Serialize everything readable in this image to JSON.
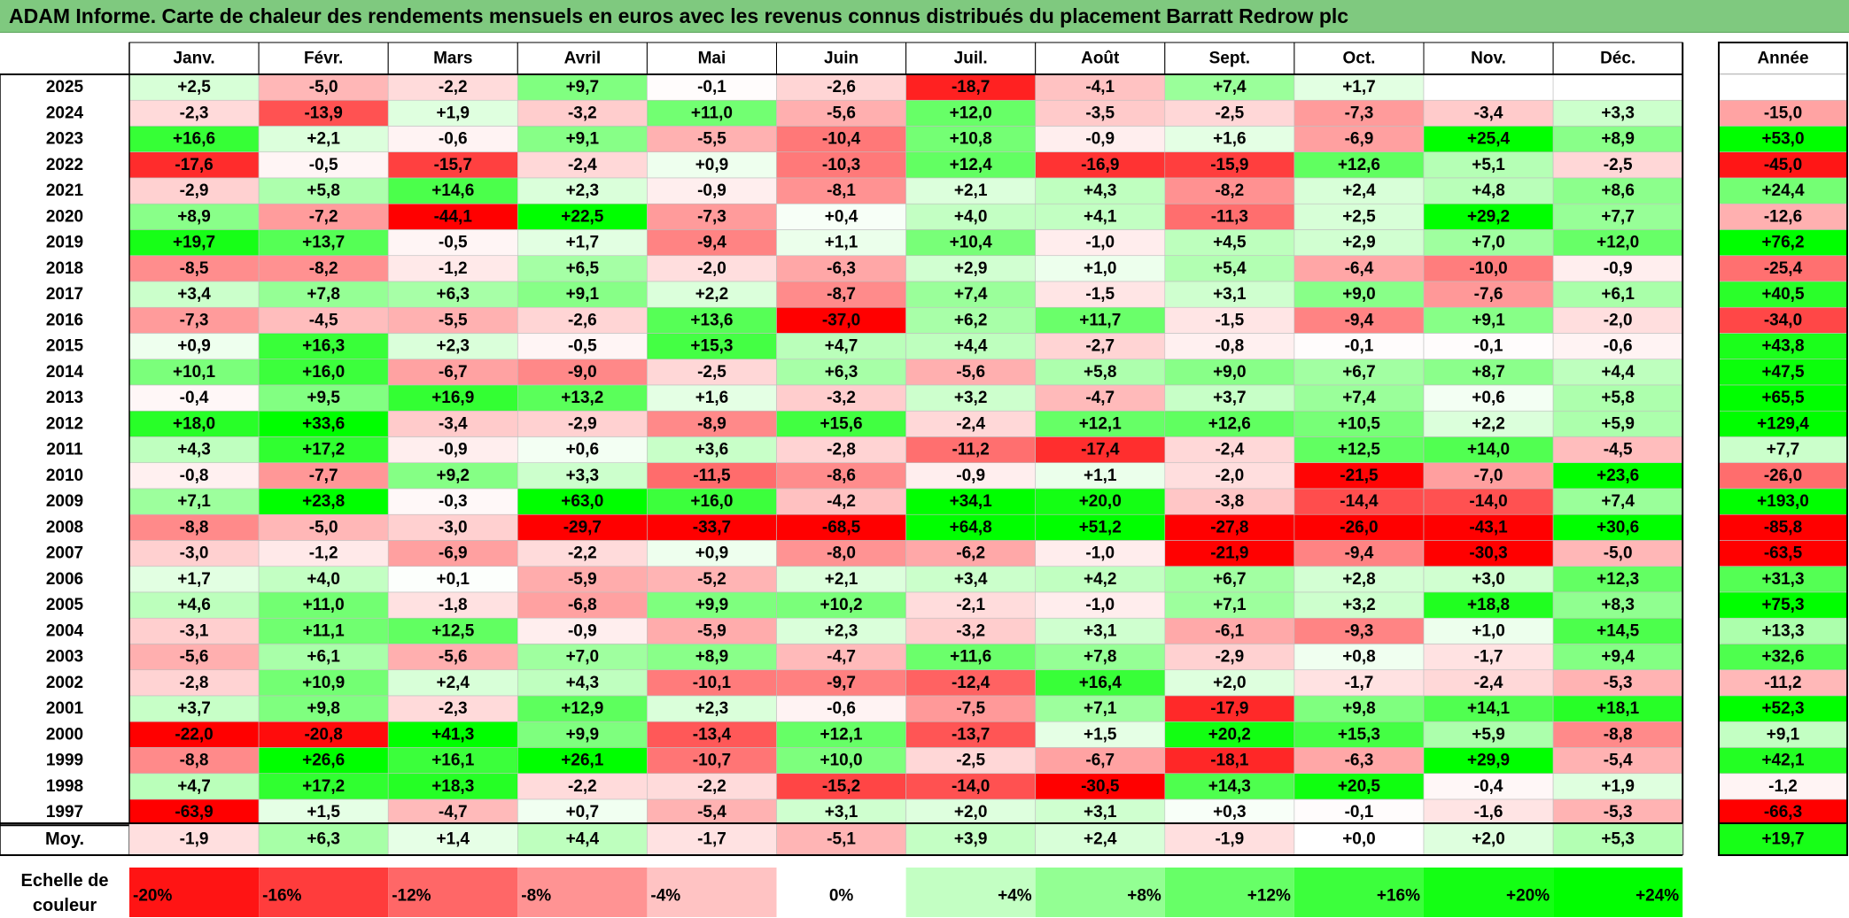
{
  "title": "ADAM Informe. Carte de chaleur des rendements mensuels en euros avec les revenus connus distribués du placement Barratt Redrow plc",
  "colors": {
    "title_background": "#7fc97f",
    "negative_max": "#ff0000",
    "neutral": "#ffffff",
    "positive_max": "#00ff00"
  },
  "chart_data": {
    "type": "heatmap",
    "month_labels": [
      "Janv.",
      "Févr.",
      "Mars",
      "Avril",
      "Mai",
      "Juin",
      "Juil.",
      "Août",
      "Sept.",
      "Oct.",
      "Nov.",
      "Déc."
    ],
    "year_header": "Année",
    "rows": [
      {
        "year": "2025",
        "months": [
          "+2,5",
          "-5,0",
          "-2,2",
          "+9,7",
          "-0,1",
          "-2,6",
          "-18,7",
          "-4,1",
          "+7,4",
          "+1,7",
          "",
          ""
        ],
        "annual": ""
      },
      {
        "year": "2024",
        "months": [
          "-2,3",
          "-13,9",
          "+1,9",
          "-3,2",
          "+11,0",
          "-5,6",
          "+12,0",
          "-3,5",
          "-2,5",
          "-7,3",
          "-3,4",
          "+3,3"
        ],
        "annual": "-15,0"
      },
      {
        "year": "2023",
        "months": [
          "+16,6",
          "+2,1",
          "-0,6",
          "+9,1",
          "-5,5",
          "-10,4",
          "+10,8",
          "-0,9",
          "+1,6",
          "-6,9",
          "+25,4",
          "+8,9"
        ],
        "annual": "+53,0"
      },
      {
        "year": "2022",
        "months": [
          "-17,6",
          "-0,5",
          "-15,7",
          "-2,4",
          "+0,9",
          "-10,3",
          "+12,4",
          "-16,9",
          "-15,9",
          "+12,6",
          "+5,1",
          "-2,5"
        ],
        "annual": "-45,0"
      },
      {
        "year": "2021",
        "months": [
          "-2,9",
          "+5,8",
          "+14,6",
          "+2,3",
          "-0,9",
          "-8,1",
          "+2,1",
          "+4,3",
          "-8,2",
          "+2,4",
          "+4,8",
          "+8,6"
        ],
        "annual": "+24,4"
      },
      {
        "year": "2020",
        "months": [
          "+8,9",
          "-7,2",
          "-44,1",
          "+22,5",
          "-7,3",
          "+0,4",
          "+4,0",
          "+4,1",
          "-11,3",
          "+2,5",
          "+29,2",
          "+7,7"
        ],
        "annual": "-12,6"
      },
      {
        "year": "2019",
        "months": [
          "+19,7",
          "+13,7",
          "-0,5",
          "+1,7",
          "-9,4",
          "+1,1",
          "+10,4",
          "-1,0",
          "+4,5",
          "+2,9",
          "+7,0",
          "+12,0"
        ],
        "annual": "+76,2"
      },
      {
        "year": "2018",
        "months": [
          "-8,5",
          "-8,2",
          "-1,2",
          "+6,5",
          "-2,0",
          "-6,3",
          "+2,9",
          "+1,0",
          "+5,4",
          "-6,4",
          "-10,0",
          "-0,9"
        ],
        "annual": "-25,4"
      },
      {
        "year": "2017",
        "months": [
          "+3,4",
          "+7,8",
          "+6,3",
          "+9,1",
          "+2,2",
          "-8,7",
          "+7,4",
          "-1,5",
          "+3,1",
          "+9,0",
          "-7,6",
          "+6,1"
        ],
        "annual": "+40,5"
      },
      {
        "year": "2016",
        "months": [
          "-7,3",
          "-4,5",
          "-5,5",
          "-2,6",
          "+13,6",
          "-37,0",
          "+6,2",
          "+11,7",
          "-1,5",
          "-9,4",
          "+9,1",
          "-2,0"
        ],
        "annual": "-34,0"
      },
      {
        "year": "2015",
        "months": [
          "+0,9",
          "+16,3",
          "+2,3",
          "-0,5",
          "+15,3",
          "+4,7",
          "+4,4",
          "-2,7",
          "-0,8",
          "-0,1",
          "-0,1",
          "-0,6"
        ],
        "annual": "+43,8"
      },
      {
        "year": "2014",
        "months": [
          "+10,1",
          "+16,0",
          "-6,7",
          "-9,0",
          "-2,5",
          "+6,3",
          "-5,6",
          "+5,8",
          "+9,0",
          "+6,7",
          "+8,7",
          "+4,4"
        ],
        "annual": "+47,5"
      },
      {
        "year": "2013",
        "months": [
          "-0,4",
          "+9,5",
          "+16,9",
          "+13,2",
          "+1,6",
          "-3,2",
          "+3,2",
          "-4,7",
          "+3,7",
          "+7,4",
          "+0,6",
          "+5,8"
        ],
        "annual": "+65,5"
      },
      {
        "year": "2012",
        "months": [
          "+18,0",
          "+33,6",
          "-3,4",
          "-2,9",
          "-8,9",
          "+15,6",
          "-2,4",
          "+12,1",
          "+12,6",
          "+10,5",
          "+2,2",
          "+5,9"
        ],
        "annual": "+129,4"
      },
      {
        "year": "2011",
        "months": [
          "+4,3",
          "+17,2",
          "-0,9",
          "+0,6",
          "+3,6",
          "-2,8",
          "-11,2",
          "-17,4",
          "-2,4",
          "+12,5",
          "+14,0",
          "-4,5"
        ],
        "annual": "+7,7"
      },
      {
        "year": "2010",
        "months": [
          "-0,8",
          "-7,7",
          "+9,2",
          "+3,3",
          "-11,5",
          "-8,6",
          "-0,9",
          "+1,1",
          "-2,0",
          "-21,5",
          "-7,0",
          "+23,6"
        ],
        "annual": "-26,0"
      },
      {
        "year": "2009",
        "months": [
          "+7,1",
          "+23,8",
          "-0,3",
          "+63,0",
          "+16,0",
          "-4,2",
          "+34,1",
          "+20,0",
          "-3,8",
          "-14,4",
          "-14,0",
          "+7,4"
        ],
        "annual": "+193,0"
      },
      {
        "year": "2008",
        "months": [
          "-8,8",
          "-5,0",
          "-3,0",
          "-29,7",
          "-33,7",
          "-68,5",
          "+64,8",
          "+51,2",
          "-27,8",
          "-26,0",
          "-43,1",
          "+30,6"
        ],
        "annual": "-85,8"
      },
      {
        "year": "2007",
        "months": [
          "-3,0",
          "-1,2",
          "-6,9",
          "-2,2",
          "+0,9",
          "-8,0",
          "-6,2",
          "-1,0",
          "-21,9",
          "-9,4",
          "-30,3",
          "-5,0"
        ],
        "annual": "-63,5"
      },
      {
        "year": "2006",
        "months": [
          "+1,7",
          "+4,0",
          "+0,1",
          "-5,9",
          "-5,2",
          "+2,1",
          "+3,4",
          "+4,2",
          "+6,7",
          "+2,8",
          "+3,0",
          "+12,3"
        ],
        "annual": "+31,3"
      },
      {
        "year": "2005",
        "months": [
          "+4,6",
          "+11,0",
          "-1,8",
          "-6,8",
          "+9,9",
          "+10,2",
          "-2,1",
          "-1,0",
          "+7,1",
          "+3,2",
          "+18,8",
          "+8,3"
        ],
        "annual": "+75,3"
      },
      {
        "year": "2004",
        "months": [
          "-3,1",
          "+11,1",
          "+12,5",
          "-0,9",
          "-5,9",
          "+2,3",
          "-3,2",
          "+3,1",
          "-6,1",
          "-9,3",
          "+1,0",
          "+14,5"
        ],
        "annual": "+13,3"
      },
      {
        "year": "2003",
        "months": [
          "-5,6",
          "+6,1",
          "-5,6",
          "+7,0",
          "+8,9",
          "-4,7",
          "+11,6",
          "+7,8",
          "-2,9",
          "+0,8",
          "-1,7",
          "+9,4"
        ],
        "annual": "+32,6"
      },
      {
        "year": "2002",
        "months": [
          "-2,8",
          "+10,9",
          "+2,4",
          "+4,3",
          "-10,1",
          "-9,7",
          "-12,4",
          "+16,4",
          "+2,0",
          "-1,7",
          "-2,4",
          "-5,3"
        ],
        "annual": "-11,2"
      },
      {
        "year": "2001",
        "months": [
          "+3,7",
          "+9,8",
          "-2,3",
          "+12,9",
          "+2,3",
          "-0,6",
          "-7,5",
          "+7,1",
          "-17,9",
          "+9,8",
          "+14,1",
          "+18,1"
        ],
        "annual": "+52,3"
      },
      {
        "year": "2000",
        "months": [
          "-22,0",
          "-20,8",
          "+41,3",
          "+9,9",
          "-13,4",
          "+12,1",
          "-13,7",
          "+1,5",
          "+20,2",
          "+15,3",
          "+5,9",
          "-8,8"
        ],
        "annual": "+9,1"
      },
      {
        "year": "1999",
        "months": [
          "-8,8",
          "+26,6",
          "+16,1",
          "+26,1",
          "-10,7",
          "+10,0",
          "-2,5",
          "-6,7",
          "-18,1",
          "-6,3",
          "+29,9",
          "-5,4"
        ],
        "annual": "+42,1"
      },
      {
        "year": "1998",
        "months": [
          "+4,7",
          "+17,2",
          "+18,3",
          "-2,2",
          "-2,2",
          "-15,2",
          "-14,0",
          "-30,5",
          "+14,3",
          "+20,5",
          "-0,4",
          "+1,9"
        ],
        "annual": "-1,2"
      },
      {
        "year": "1997",
        "months": [
          "-63,9",
          "+1,5",
          "-4,7",
          "+0,7",
          "-5,4",
          "+3,1",
          "+2,0",
          "+3,1",
          "+0,3",
          "-0,1",
          "-1,6",
          "-5,3"
        ],
        "annual": "-66,3"
      }
    ],
    "average": {
      "label": "Moy.",
      "months": [
        "-1,9",
        "+6,3",
        "+1,4",
        "+4,4",
        "-1,7",
        "-5,1",
        "+3,9",
        "+2,4",
        "-1,9",
        "+0,0",
        "+2,0",
        "+5,3"
      ],
      "annual": "+19,7"
    },
    "legend": {
      "label_line1": "Echelle de",
      "label_line2": "couleur",
      "stops": [
        "-20%",
        "-16%",
        "-12%",
        "-8%",
        "-4%",
        "0%",
        "+4%",
        "+8%",
        "+12%",
        "+16%",
        "+20%",
        "+24%"
      ]
    }
  }
}
